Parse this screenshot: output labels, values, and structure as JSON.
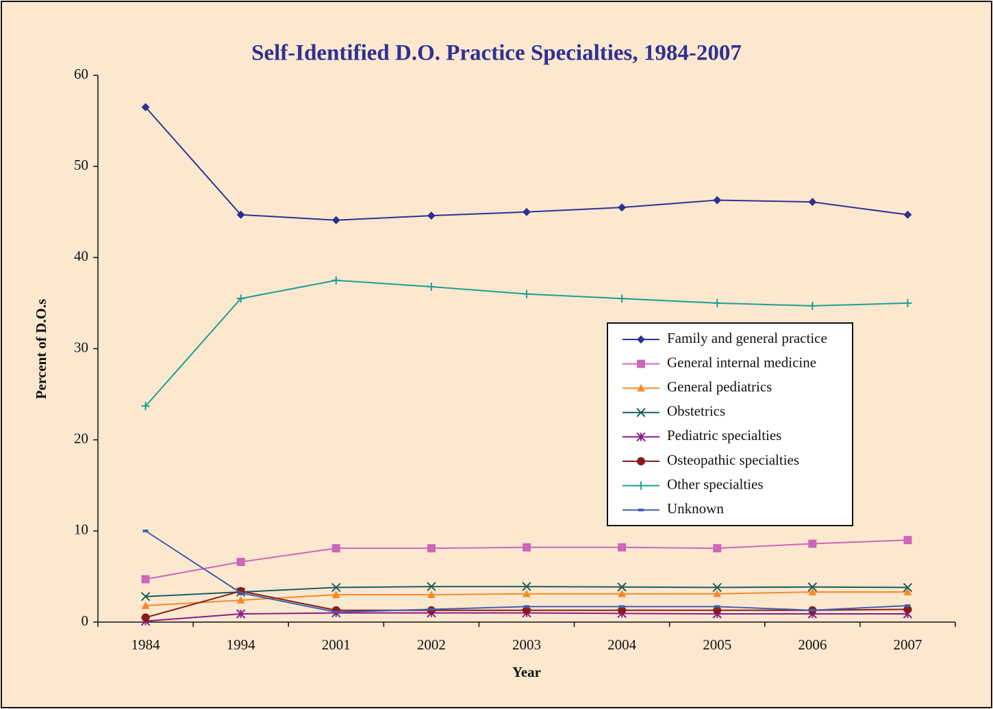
{
  "chart_data": {
    "type": "line",
    "title": "Self-Identified D.O. Practice Specialties, 1984-2007",
    "x_label": "Year",
    "y_label": "Percent of D.O.s",
    "categories": [
      "1984",
      "1994",
      "2001",
      "2002",
      "2003",
      "2004",
      "2005",
      "2006",
      "2007"
    ],
    "ylim": [
      0,
      60
    ],
    "yticks": [
      0,
      10,
      20,
      30,
      40,
      50,
      60
    ],
    "grid": false,
    "legend": "right",
    "series": [
      {
        "name": "Family and general practice",
        "color": "#2e3192",
        "marker": "diamond",
        "values": [
          56.5,
          44.7,
          44.1,
          44.6,
          45.0,
          45.5,
          46.3,
          46.1,
          44.7
        ]
      },
      {
        "name": "General internal medicine",
        "color": "#cc66b8",
        "marker": "square",
        "values": [
          4.7,
          6.6,
          8.1,
          8.1,
          8.2,
          8.2,
          8.1,
          8.6,
          9.0
        ]
      },
      {
        "name": "General pediatrics",
        "color": "#f58a2a",
        "marker": "triangle",
        "values": [
          1.8,
          2.4,
          3.0,
          3.0,
          3.1,
          3.1,
          3.1,
          3.3,
          3.3
        ]
      },
      {
        "name": "Obstetrics",
        "color": "#1a5e5a",
        "marker": "x",
        "values": [
          2.8,
          3.3,
          3.8,
          3.9,
          3.9,
          3.85,
          3.8,
          3.85,
          3.8
        ]
      },
      {
        "name": "Pediatric specialties",
        "color": "#8b1a8b",
        "marker": "asterisk",
        "values": [
          0.1,
          0.9,
          1.0,
          1.0,
          1.0,
          0.95,
          0.9,
          0.9,
          0.9
        ]
      },
      {
        "name": "Osteopathic specialties",
        "color": "#8b1a1a",
        "marker": "circle",
        "values": [
          0.5,
          3.4,
          1.3,
          1.3,
          1.3,
          1.3,
          1.3,
          1.3,
          1.4
        ]
      },
      {
        "name": "Other specialties",
        "color": "#1a9e96",
        "marker": "plus",
        "values": [
          23.7,
          35.5,
          37.5,
          36.8,
          36.0,
          35.5,
          35.0,
          34.7,
          35.0
        ]
      },
      {
        "name": "Unknown",
        "color": "#3f5fae",
        "marker": "dash",
        "values": [
          10.0,
          3.2,
          1.1,
          1.4,
          1.7,
          1.7,
          1.7,
          1.3,
          1.8
        ]
      }
    ]
  }
}
